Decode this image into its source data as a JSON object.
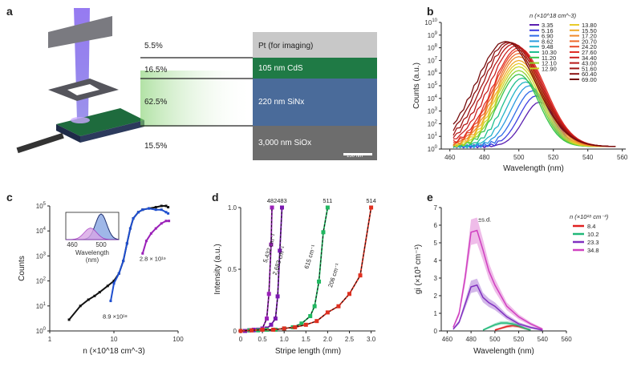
{
  "panel_labels": {
    "a": "a",
    "b": "b",
    "c": "c",
    "d": "d",
    "e": "e"
  },
  "panel_a": {
    "rows": [
      {
        "pct": "5.5%",
        "layer": "Pt (for imaging)",
        "color": "#c9c9c9"
      },
      {
        "pct": "16.5%",
        "layer": "105 nm CdS",
        "color": "#1f7a45"
      },
      {
        "pct": "62.5%",
        "layer": "220 nm SiNx",
        "color": "#4a6b9a"
      },
      {
        "pct": "15.5%",
        "layer": "3,000 nm SiOx",
        "color": "#6d6d6d"
      }
    ],
    "scale_bar": "150 nm"
  },
  "chart_data": [
    {
      "id": "b",
      "type": "line",
      "title": "",
      "xlabel": "Wavelength (nm)",
      "ylabel": "Counts (a.u.)",
      "xlim": [
        455,
        562
      ],
      "ylim_log10": [
        0,
        10
      ],
      "yscale": "log",
      "xticks": [
        460,
        480,
        500,
        520,
        540,
        560
      ],
      "yticks": [
        "10^0",
        "10^1",
        "10^2",
        "10^3",
        "10^4",
        "10^5",
        "10^6",
        "10^7",
        "10^8",
        "10^9",
        "10^10"
      ],
      "legend_title": "n (×10^18 cm^-3)",
      "legend_col1": [
        "3.35",
        "5.16",
        "6.90",
        "8.62",
        "9.48",
        "10.30",
        "11.20",
        "12.10",
        "12.90"
      ],
      "legend_col2": [
        "13.80",
        "15.50",
        "17.20",
        "20.70",
        "24.20",
        "27.60",
        "34.40",
        "43.00",
        "51.60",
        "60.40",
        "69.00"
      ],
      "series_colors": [
        "#5a1fb0",
        "#3d3de0",
        "#2f6be8",
        "#2a9be0",
        "#23b4c7",
        "#1fbf8e",
        "#3ac44a",
        "#8fd12c",
        "#c9d62a",
        "#e8cc2a",
        "#f0aa2a",
        "#f08a2a",
        "#ee6a2a",
        "#e84a28",
        "#e02e26",
        "#cc2020",
        "#b81818",
        "#a01414",
        "#8a1010",
        "#760c0c"
      ],
      "peak_log10": [
        3.7,
        4.2,
        4.6,
        5.0,
        5.3,
        5.6,
        5.9,
        6.2,
        6.5,
        6.75,
        7.0,
        7.3,
        7.55,
        7.8,
        8.0,
        8.15,
        8.3,
        8.4,
        8.45,
        8.5
      ]
    },
    {
      "id": "c",
      "type": "line",
      "xlabel": "n (×10^18 cm^-3)",
      "ylabel": "Counts",
      "xscale": "log",
      "yscale": "log",
      "xlim": [
        1,
        100
      ],
      "ylim_log10": [
        0,
        5
      ],
      "xticks": [
        "1",
        "10",
        "100"
      ],
      "yticks": [
        "10^0",
        "10^1",
        "10^2",
        "10^3",
        "10^4",
        "10^5"
      ],
      "series": [
        {
          "name": "black",
          "color": "#111111",
          "x": [
            2,
            3,
            4,
            5,
            6,
            8,
            10,
            12,
            14,
            16,
            18,
            20,
            24,
            28,
            35,
            45,
            55,
            65,
            70
          ],
          "y_log10": [
            0.45,
            1.0,
            1.25,
            1.4,
            1.55,
            1.8,
            2.0,
            2.3,
            2.8,
            3.5,
            4.1,
            4.5,
            4.75,
            4.85,
            4.9,
            4.95,
            5.0,
            5.0,
            4.95
          ]
        },
        {
          "name": "blue",
          "color": "#1f4fcf",
          "x": [
            8.9,
            10,
            12,
            14,
            16,
            18,
            20,
            24,
            28,
            35,
            45,
            55,
            65,
            70
          ],
          "y_log10": [
            1.2,
            1.9,
            2.3,
            2.8,
            3.5,
            4.1,
            4.5,
            4.75,
            4.85,
            4.9,
            4.85,
            4.85,
            4.75,
            4.7
          ]
        },
        {
          "name": "purple",
          "color": "#9a20b8",
          "x": [
            28,
            32,
            38,
            45,
            55,
            65,
            72
          ],
          "y_log10": [
            3.1,
            3.6,
            3.9,
            4.1,
            4.3,
            4.4,
            4.4
          ]
        }
      ],
      "annotations": [
        {
          "text": "8.9 ×10^18",
          "color": "#1f4fcf"
        },
        {
          "text": "2.8 × 10^19",
          "color": "#9a20b8"
        }
      ],
      "inset": {
        "xlabel": "Wavelength",
        "xunit": "(nm)",
        "xticks": [
          "460",
          "500"
        ]
      }
    },
    {
      "id": "d",
      "type": "scatter",
      "xlabel": "Stripe length (mm)",
      "ylabel": "Intensity (a.u.)",
      "xlim": [
        0,
        3.1
      ],
      "ylim": [
        0,
        1.0
      ],
      "xticks": [
        "0",
        "0.5",
        "1.0",
        "1.5",
        "2.0",
        "2.5",
        "3.0"
      ],
      "yticks": [
        "0",
        "0.5",
        "1.0"
      ],
      "series": [
        {
          "name": "482",
          "color": "#9a20b8",
          "x": [
            0,
            0.1,
            0.2,
            0.3,
            0.4,
            0.5,
            0.6,
            0.65,
            0.7,
            0.72
          ],
          "y": [
            0,
            0,
            0.005,
            0.01,
            0.01,
            0.02,
            0.1,
            0.3,
            0.7,
            1.0
          ],
          "label": "5,432 cm^-1"
        },
        {
          "name": "483",
          "color": "#7a18b0",
          "x": [
            0,
            0.1,
            0.2,
            0.3,
            0.4,
            0.5,
            0.6,
            0.7,
            0.8,
            0.85,
            0.9,
            0.95
          ],
          "y": [
            0,
            0,
            0.005,
            0.005,
            0.01,
            0.01,
            0.02,
            0.05,
            0.1,
            0.28,
            0.65,
            1.0
          ],
          "label": "2,683 cm^-1"
        },
        {
          "name": "511",
          "color": "#20b860",
          "x": [
            0,
            0.2,
            0.4,
            0.6,
            0.8,
            1.0,
            1.2,
            1.4,
            1.6,
            1.7,
            1.8,
            1.9,
            2.0
          ],
          "y": [
            0,
            0.005,
            0.005,
            0.01,
            0.01,
            0.02,
            0.03,
            0.06,
            0.12,
            0.2,
            0.4,
            0.8,
            1.0
          ],
          "label": "615 cm^-1"
        },
        {
          "name": "514",
          "color": "#e03020",
          "x": [
            0,
            0.25,
            0.5,
            0.75,
            1.0,
            1.25,
            1.5,
            1.75,
            2.0,
            2.25,
            2.5,
            2.75,
            3.0
          ],
          "y": [
            0,
            0.005,
            0.01,
            0.01,
            0.02,
            0.03,
            0.05,
            0.08,
            0.15,
            0.2,
            0.3,
            0.45,
            1.0
          ],
          "label": "206 cm^-1"
        }
      ]
    },
    {
      "id": "e",
      "type": "line",
      "xlabel": "Wavelength (nm)",
      "ylabel": "gi (×10^3 cm^-1)",
      "xlim": [
        455,
        560
      ],
      "ylim": [
        0,
        7
      ],
      "xticks": [
        "460",
        "480",
        "500",
        "520",
        "540",
        "560"
      ],
      "yticks": [
        "0",
        "1",
        "2",
        "3",
        "4",
        "5",
        "6",
        "7"
      ],
      "legend_title": "n (×10^18 cm^-3)",
      "annotation": "±s.d.",
      "series": [
        {
          "name": "8.4",
          "color": "#e02020",
          "x": [
            500,
            505,
            510,
            515,
            520,
            525,
            530
          ],
          "y": [
            0.05,
            0.15,
            0.25,
            0.3,
            0.25,
            0.15,
            0.05
          ]
        },
        {
          "name": "10.2",
          "color": "#20b878",
          "x": [
            490,
            495,
            500,
            505,
            510,
            515,
            520,
            525,
            530
          ],
          "y": [
            0.05,
            0.2,
            0.35,
            0.45,
            0.45,
            0.4,
            0.3,
            0.15,
            0.05
          ]
        },
        {
          "name": "23.3",
          "color": "#8030c0",
          "x": [
            465,
            470,
            475,
            480,
            485,
            490,
            495,
            500,
            505,
            510,
            520,
            530,
            540
          ],
          "y": [
            0.1,
            0.5,
            1.5,
            2.5,
            2.6,
            1.9,
            1.6,
            1.4,
            1.1,
            0.8,
            0.4,
            0.2,
            0.05
          ]
        },
        {
          "name": "34.8",
          "color": "#d040c0",
          "x": [
            465,
            470,
            475,
            480,
            485,
            490,
            495,
            500,
            505,
            510,
            520,
            530,
            540
          ],
          "y": [
            0.2,
            1.0,
            3.0,
            5.6,
            5.7,
            4.6,
            3.4,
            2.6,
            2.0,
            1.4,
            0.8,
            0.4,
            0.1
          ]
        }
      ]
    }
  ]
}
